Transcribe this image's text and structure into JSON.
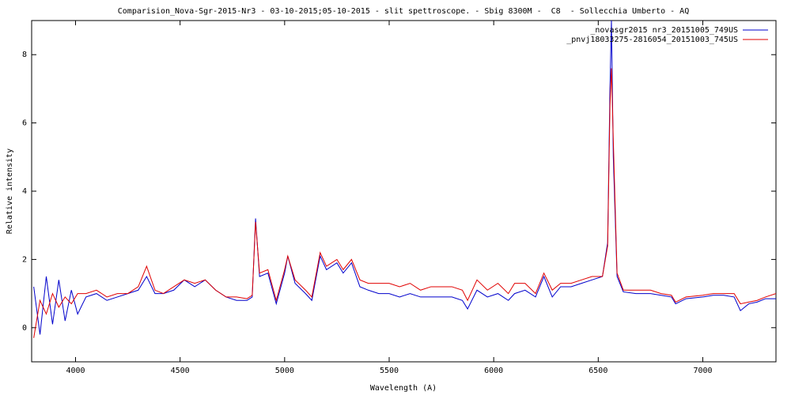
{
  "chart_data": {
    "type": "line",
    "title": "Comparision_Nova-Sgr-2015-Nr3 - 03-10-2015;05-10-2015 - slit spettroscope. - Sbig 8300M -  C8  - Sollecchia Umberto - AQ",
    "x_label": "Wavelength (A)",
    "y_label": "Relative intensity",
    "xlim": [
      3790,
      7350
    ],
    "ylim": [
      -1,
      9
    ],
    "xticks": [
      4000,
      4500,
      5000,
      5500,
      6000,
      6500,
      7000
    ],
    "yticks": [
      0,
      2,
      4,
      6,
      8
    ],
    "grid": false,
    "legend": "top-right",
    "x": [
      3800,
      3830,
      3860,
      3890,
      3920,
      3950,
      3980,
      4010,
      4050,
      4100,
      4150,
      4200,
      4250,
      4300,
      4340,
      4380,
      4420,
      4470,
      4520,
      4570,
      4620,
      4670,
      4720,
      4770,
      4820,
      4845,
      4861,
      4880,
      4920,
      4960,
      5000,
      5015,
      5050,
      5100,
      5130,
      5170,
      5200,
      5250,
      5280,
      5320,
      5360,
      5400,
      5450,
      5500,
      5550,
      5600,
      5650,
      5700,
      5750,
      5800,
      5850,
      5875,
      5920,
      5970,
      6020,
      6070,
      6100,
      6150,
      6200,
      6240,
      6280,
      6320,
      6370,
      6420,
      6470,
      6520,
      6545,
      6556,
      6563,
      6572,
      6590,
      6620,
      6680,
      6750,
      6800,
      6850,
      6870,
      6920,
      7000,
      7050,
      7100,
      7150,
      7180,
      7220,
      7260,
      7300,
      7350
    ],
    "series": [
      {
        "name": "_novasgr2015 nr3_20151005_749US",
        "color": "#0000cc",
        "values": [
          1.2,
          -0.2,
          1.5,
          0.1,
          1.4,
          0.2,
          1.1,
          0.4,
          0.9,
          1.0,
          0.8,
          0.9,
          1.0,
          1.1,
          1.5,
          1.0,
          1.0,
          1.1,
          1.4,
          1.2,
          1.4,
          1.1,
          0.9,
          0.8,
          0.8,
          0.9,
          3.2,
          1.5,
          1.6,
          0.7,
          1.6,
          2.1,
          1.3,
          1.0,
          0.8,
          2.1,
          1.7,
          1.9,
          1.6,
          1.9,
          1.2,
          1.1,
          1.0,
          1.0,
          0.9,
          1.0,
          0.9,
          0.9,
          0.9,
          0.9,
          0.8,
          0.55,
          1.1,
          0.9,
          1.0,
          0.8,
          1.0,
          1.1,
          0.9,
          1.5,
          0.9,
          1.2,
          1.2,
          1.3,
          1.4,
          1.5,
          2.5,
          7.0,
          9.0,
          5.0,
          1.5,
          1.05,
          1.0,
          1.0,
          0.95,
          0.9,
          0.7,
          0.85,
          0.9,
          0.95,
          0.95,
          0.9,
          0.5,
          0.7,
          0.75,
          0.85,
          0.85
        ]
      },
      {
        "name": "_pnvj18033275-2816054_20151003_745US",
        "color": "#e00000",
        "values": [
          -0.3,
          0.8,
          0.4,
          1.0,
          0.6,
          0.9,
          0.7,
          1.0,
          1.0,
          1.1,
          0.9,
          1.0,
          1.0,
          1.2,
          1.8,
          1.1,
          1.0,
          1.2,
          1.4,
          1.3,
          1.4,
          1.1,
          0.9,
          0.9,
          0.85,
          0.95,
          3.1,
          1.6,
          1.7,
          0.8,
          1.7,
          2.1,
          1.4,
          1.1,
          0.9,
          2.2,
          1.8,
          2.0,
          1.7,
          2.0,
          1.4,
          1.3,
          1.3,
          1.3,
          1.2,
          1.3,
          1.1,
          1.2,
          1.2,
          1.2,
          1.1,
          0.8,
          1.4,
          1.1,
          1.3,
          1.0,
          1.3,
          1.3,
          1.0,
          1.6,
          1.1,
          1.3,
          1.3,
          1.4,
          1.5,
          1.5,
          2.4,
          6.5,
          7.6,
          5.5,
          1.6,
          1.1,
          1.1,
          1.1,
          1.0,
          0.95,
          0.75,
          0.9,
          0.95,
          1.0,
          1.0,
          1.0,
          0.7,
          0.75,
          0.8,
          0.9,
          1.0
        ]
      }
    ]
  }
}
